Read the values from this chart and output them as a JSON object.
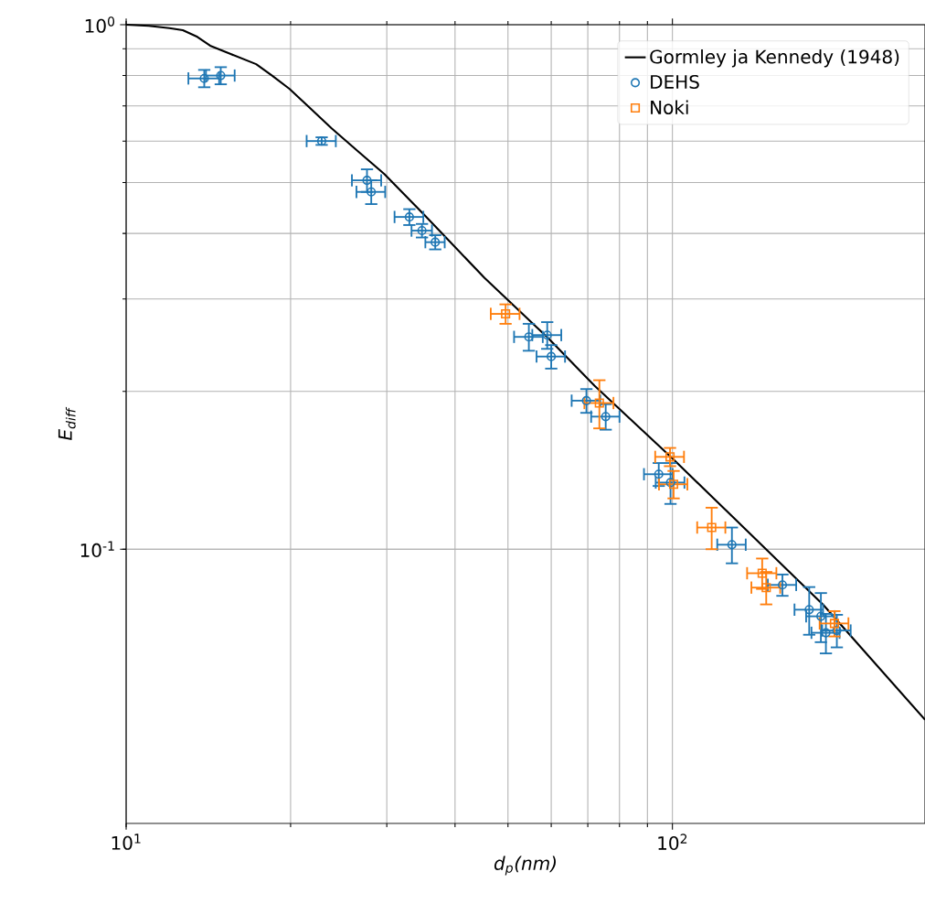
{
  "chart_data": {
    "type": "scatter",
    "xlabel": "d$_{p}$(nm)",
    "ylabel": "E$_{diff}$",
    "log": "xy",
    "grid": true,
    "legend": "top right",
    "xlim": [
      10,
      290
    ],
    "ylim": [
      0.03,
      1.0
    ],
    "xticks": [
      {
        "value": 10,
        "label": "10$^{1}$"
      },
      {
        "value": 100,
        "label": "10$^{2}$"
      }
    ],
    "yticks": [
      {
        "value": 0.1,
        "label": "10$^{-1}$"
      },
      {
        "value": 1,
        "label": "10$^{0}$"
      }
    ],
    "series": [
      {
        "name": "Gormley ja Kennedy (1948)",
        "type": "line",
        "color": "#000000",
        "marker": "none",
        "line_style": "solid",
        "x": [
          10,
          11,
          12,
          12.7,
          13.5,
          14.25,
          15.5,
          17.3,
          18.5,
          19.9,
          21.5,
          23.8,
          26.5,
          29.7,
          35.0,
          45.3,
          59.4,
          72.0,
          100,
          128.5,
          189,
          290
        ],
        "values": [
          1.0,
          0.995,
          0.985,
          0.976,
          0.948,
          0.912,
          0.88,
          0.841,
          0.8,
          0.755,
          0.7,
          0.634,
          0.575,
          0.519,
          0.436,
          0.329,
          0.252,
          0.205,
          0.149,
          0.1157,
          0.0783,
          0.0473
        ]
      },
      {
        "name": "DEHS",
        "color": "#1f77b4",
        "marker": "circle",
        "x": [
          13.9,
          14.9,
          22.8,
          27.6,
          28.1,
          33.0,
          34.8,
          36.8,
          54.6,
          59.0,
          60.0,
          69.6,
          75.5,
          94.4,
          99.2,
          128.5,
          159,
          178,
          187,
          191,
          200
        ],
        "values": [
          0.79,
          0.8,
          0.6,
          0.505,
          0.48,
          0.43,
          0.405,
          0.385,
          0.254,
          0.256,
          0.233,
          0.192,
          0.179,
          0.139,
          0.134,
          0.102,
          0.0855,
          0.0767,
          0.0745,
          0.0693,
          0.07
        ],
        "xerrors": [
          0.9,
          0.9,
          1.4,
          1.7,
          1.7,
          2.0,
          1.5,
          1.5,
          3.3,
          3.6,
          3.6,
          4.2,
          4.5,
          5.7,
          6.0,
          7.7,
          9.5,
          10.7,
          11.3,
          11.3,
          12
        ],
        "errors": [
          0.03,
          0.03,
          0.01,
          0.025,
          0.025,
          0.015,
          0.012,
          0.012,
          0.015,
          0.015,
          0.012,
          0.01,
          0.01,
          0.007,
          0.012,
          0.008,
          0.004,
          0.008,
          0.008,
          0.006,
          0.005
        ]
      },
      {
        "name": "Noki",
        "color": "#ff7f0e",
        "marker": "square",
        "x": [
          49.5,
          73.5,
          99.0,
          100.5,
          118,
          146,
          148.5,
          198
        ],
        "values": [
          0.281,
          0.19,
          0.15,
          0.133,
          0.11,
          0.09,
          0.0845,
          0.0722
        ],
        "xerrors": [
          3,
          4.5,
          6,
          6,
          7,
          9,
          9,
          12
        ],
        "errors": [
          0.012,
          0.02,
          0.006,
          0.008,
          0.01,
          0.006,
          0.006,
          0.004
        ]
      }
    ]
  }
}
